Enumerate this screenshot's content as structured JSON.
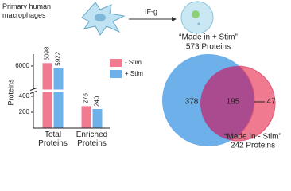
{
  "cells": {
    "label": "Primary human macrophages",
    "treatment": "IF-g"
  },
  "chart_data": [
    {
      "type": "bar",
      "y_label": "Proteins",
      "categories": [
        "Total Proteins",
        "Enriched Proteins"
      ],
      "series": [
        {
          "name": "- Stim",
          "color": "#f07b90",
          "values": [
            6098,
            276
          ]
        },
        {
          "name": "+ Stim",
          "color": "#6db0ea",
          "values": [
            5922,
            240
          ]
        }
      ],
      "ylim": [
        0,
        6300
      ],
      "ybreak": [
        450,
        5200
      ],
      "yticks": [
        200,
        400,
        6000
      ],
      "legend": "top-right"
    },
    {
      "type": "venn",
      "sets": [
        {
          "name": "“Made in + Stim”",
          "value": 573,
          "value_label": "573 Proteins",
          "color": "#6db0ea"
        },
        {
          "name": "“Made In - Stim”",
          "value": 242,
          "value_label": "242 Proteins",
          "color": "#f07b90"
        }
      ],
      "regions": [
        378,
        195,
        47
      ]
    }
  ]
}
